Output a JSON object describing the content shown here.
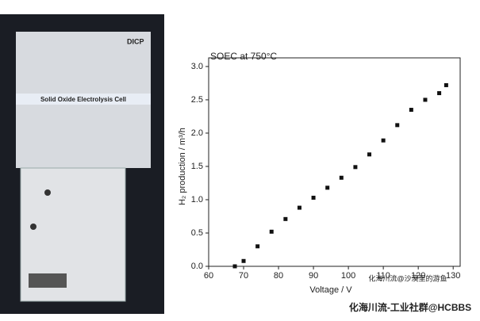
{
  "photo": {
    "logo": "DICP",
    "label": "Solid Oxide Electrolysis Cell"
  },
  "chart_data": {
    "type": "scatter",
    "title": "SOEC at 750°C",
    "x_label": "Voltage / V",
    "y_label": "H₂ production / m³/h",
    "series": [
      {
        "name": "H2",
        "color": "#111111",
        "x": [
          67.5,
          70,
          74,
          78,
          82,
          86,
          90,
          94,
          98,
          102,
          106,
          110,
          114,
          118,
          122,
          126,
          128
        ],
        "values": [
          0.0,
          0.08,
          0.3,
          0.52,
          0.71,
          0.88,
          1.03,
          1.18,
          1.33,
          1.49,
          1.68,
          1.89,
          2.12,
          2.35,
          2.5,
          2.6,
          2.72
        ]
      }
    ],
    "xlim": [
      60,
      132
    ],
    "ylim": [
      0,
      3.13
    ],
    "xticks": [
      60,
      70,
      80,
      90,
      100,
      110,
      120,
      130
    ],
    "yticks": [
      {
        "value": 0,
        "label": "0.0"
      },
      {
        "value": 0.5,
        "label": "0.5"
      },
      {
        "value": 1,
        "label": "1.0"
      },
      {
        "value": 1.5,
        "label": "1.5"
      },
      {
        "value": 2,
        "label": "2.0"
      },
      {
        "value": 2.5,
        "label": "2.5"
      },
      {
        "value": 3,
        "label": "3.0"
      }
    ],
    "annotations": [
      "化海川流@沙漠里的游鱼",
      "化海川流-工业社群@HCBBS"
    ]
  }
}
